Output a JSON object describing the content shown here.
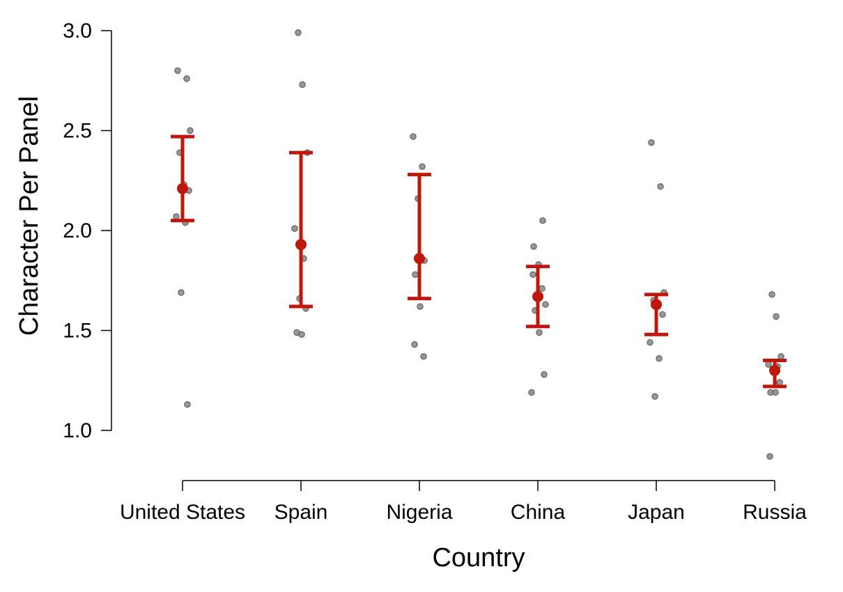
{
  "chart_data": {
    "type": "scatter",
    "title": "",
    "xlabel": "Country",
    "ylabel": "Character Per Panel",
    "categories": [
      "United States",
      "Spain",
      "Nigeria",
      "China",
      "Japan",
      "Russia"
    ],
    "ylim": [
      0.8,
      3.05
    ],
    "yticks": [
      1.0,
      1.5,
      2.0,
      2.5,
      3.0
    ],
    "ytick_labels": [
      "1.0",
      "1.5",
      "2.0",
      "2.5",
      "3.0"
    ],
    "grid": false,
    "legend": "none",
    "colors": {
      "summary": "#c0170c",
      "raw": "#8c8c8c"
    },
    "summary": [
      {
        "category": "United States",
        "mean": 2.21,
        "lower": 2.05,
        "upper": 2.47
      },
      {
        "category": "Spain",
        "mean": 1.93,
        "lower": 1.62,
        "upper": 2.39
      },
      {
        "category": "Nigeria",
        "mean": 1.86,
        "lower": 1.66,
        "upper": 2.28
      },
      {
        "category": "China",
        "mean": 1.67,
        "lower": 1.52,
        "upper": 1.82
      },
      {
        "category": "Japan",
        "mean": 1.63,
        "lower": 1.48,
        "upper": 1.68
      },
      {
        "category": "Russia",
        "mean": 1.3,
        "lower": 1.22,
        "upper": 1.35
      }
    ],
    "raw_points": [
      {
        "category": "United States",
        "values": [
          2.8,
          2.76,
          2.5,
          2.39,
          2.23,
          2.2,
          2.07,
          2.04,
          1.69,
          1.13
        ]
      },
      {
        "category": "Spain",
        "values": [
          2.99,
          2.73,
          2.39,
          2.01,
          1.86,
          1.66,
          1.61,
          1.49,
          1.48
        ]
      },
      {
        "category": "Nigeria",
        "values": [
          2.47,
          2.32,
          2.16,
          1.85,
          1.78,
          1.62,
          1.43,
          1.37
        ]
      },
      {
        "category": "China",
        "values": [
          2.05,
          1.92,
          1.83,
          1.78,
          1.71,
          1.63,
          1.6,
          1.49,
          1.28,
          1.19
        ]
      },
      {
        "category": "Japan",
        "values": [
          2.44,
          2.22,
          1.69,
          1.65,
          1.62,
          1.58,
          1.44,
          1.36,
          1.17
        ]
      },
      {
        "category": "Russia",
        "values": [
          1.68,
          1.57,
          1.37,
          1.33,
          1.32,
          1.29,
          1.24,
          1.19,
          1.19,
          0.87
        ]
      }
    ]
  }
}
